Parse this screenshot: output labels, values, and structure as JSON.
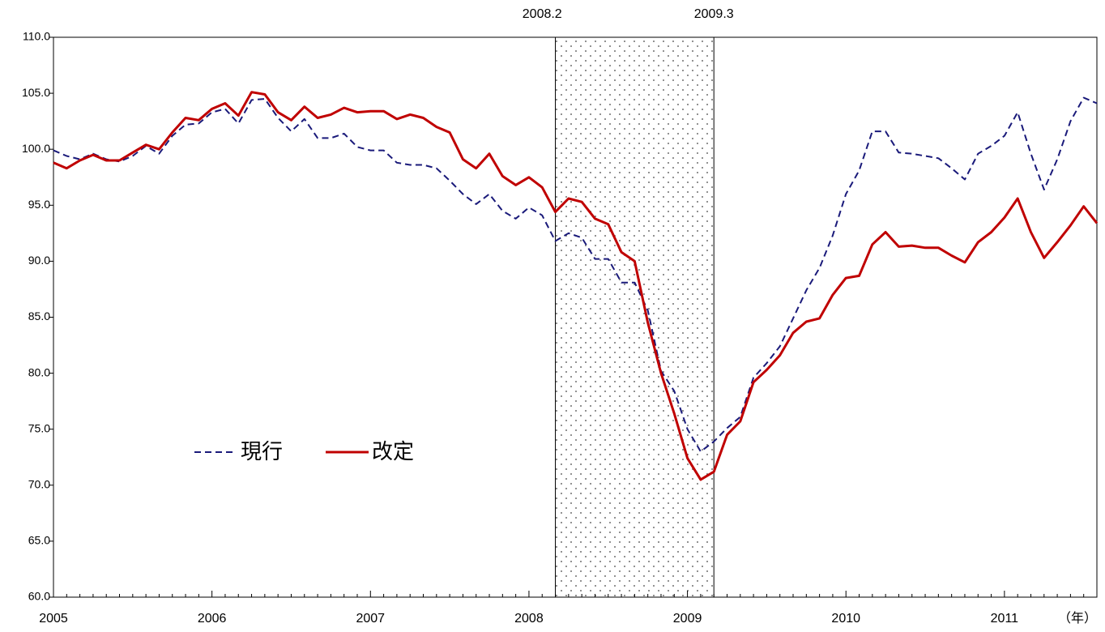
{
  "chart_data": {
    "type": "line",
    "categories": [
      "2005",
      null,
      null,
      null,
      null,
      null,
      null,
      null,
      null,
      null,
      null,
      null,
      "2006",
      null,
      null,
      null,
      null,
      null,
      null,
      null,
      null,
      null,
      null,
      null,
      "2007",
      null,
      null,
      null,
      null,
      null,
      null,
      null,
      null,
      null,
      null,
      null,
      "2008",
      null,
      null,
      null,
      null,
      null,
      null,
      null,
      null,
      null,
      null,
      null,
      "2009",
      null,
      null,
      null,
      null,
      null,
      null,
      null,
      null,
      null,
      null,
      null,
      "2010",
      null,
      null,
      null,
      null,
      null,
      null,
      null,
      null,
      null,
      null,
      null,
      "2011",
      null,
      null,
      null,
      null,
      null,
      null,
      null
    ],
    "series": [
      {
        "name": "現行",
        "color": "#1a1a7a",
        "dash": true,
        "values": [
          99.9,
          99.4,
          99.1,
          99.6,
          99.1,
          98.9,
          99.4,
          100.3,
          99.6,
          101.2,
          102.2,
          102.3,
          103.3,
          103.6,
          102.3,
          104.4,
          104.5,
          102.8,
          101.6,
          102.7,
          101.0,
          101.0,
          101.4,
          100.2,
          99.9,
          99.9,
          98.8,
          98.6,
          98.6,
          98.3,
          97.2,
          96.0,
          95.1,
          96.0,
          94.5,
          93.8,
          94.8,
          94.1,
          91.8,
          92.5,
          92.1,
          90.2,
          90.2,
          88.1,
          88.1,
          85.6,
          80.2,
          78.4,
          75.0,
          73.0,
          73.9,
          75.1,
          76.1,
          79.6,
          80.9,
          82.4,
          84.9,
          87.4,
          89.4,
          92.3,
          96.0,
          98.1,
          101.6,
          101.6,
          99.7,
          99.6,
          99.4,
          99.2,
          98.3,
          97.3,
          99.6,
          100.3,
          101.2,
          103.3,
          99.6,
          96.4,
          99.1,
          102.5,
          104.6,
          104.1
        ]
      },
      {
        "name": "改定",
        "color": "#c00000",
        "dash": false,
        "values": [
          98.8,
          98.3,
          99.0,
          99.5,
          99.0,
          99.0,
          99.7,
          100.4,
          100.0,
          101.5,
          102.8,
          102.6,
          103.6,
          104.1,
          103.0,
          105.1,
          104.9,
          103.3,
          102.6,
          103.8,
          102.8,
          103.1,
          103.7,
          103.3,
          103.4,
          103.4,
          102.7,
          103.1,
          102.8,
          102.0,
          101.5,
          99.1,
          98.3,
          99.6,
          97.6,
          96.8,
          97.5,
          96.6,
          94.4,
          95.6,
          95.3,
          93.8,
          93.3,
          90.8,
          90.0,
          84.5,
          80.0,
          76.4,
          72.4,
          70.5,
          71.2,
          74.5,
          75.7,
          79.2,
          80.3,
          81.6,
          83.6,
          84.6,
          84.9,
          87.0,
          88.5,
          88.7,
          91.5,
          92.6,
          91.3,
          91.4,
          91.2,
          91.2,
          90.5,
          89.9,
          91.7,
          92.6,
          93.9,
          95.6,
          92.6,
          90.3,
          91.7,
          93.2,
          94.9,
          93.4
        ]
      }
    ],
    "ylim": [
      60,
      110
    ],
    "yticks": [
      {
        "value": 60,
        "label": "60.0"
      },
      {
        "value": 65,
        "label": "65.0"
      },
      {
        "value": 70,
        "label": "70.0"
      },
      {
        "value": 75,
        "label": "75.0"
      },
      {
        "value": 80,
        "label": "80.0"
      },
      {
        "value": 85,
        "label": "85.0"
      },
      {
        "value": 90,
        "label": "90.0"
      },
      {
        "value": 95,
        "label": "95.0"
      },
      {
        "value": 100,
        "label": "100.0"
      },
      {
        "value": 105,
        "label": "105.0"
      },
      {
        "value": 110,
        "label": "110.0"
      }
    ],
    "x_unit": "（年）",
    "shaded_period": {
      "start": "2008.2",
      "end": "2009.3"
    }
  }
}
